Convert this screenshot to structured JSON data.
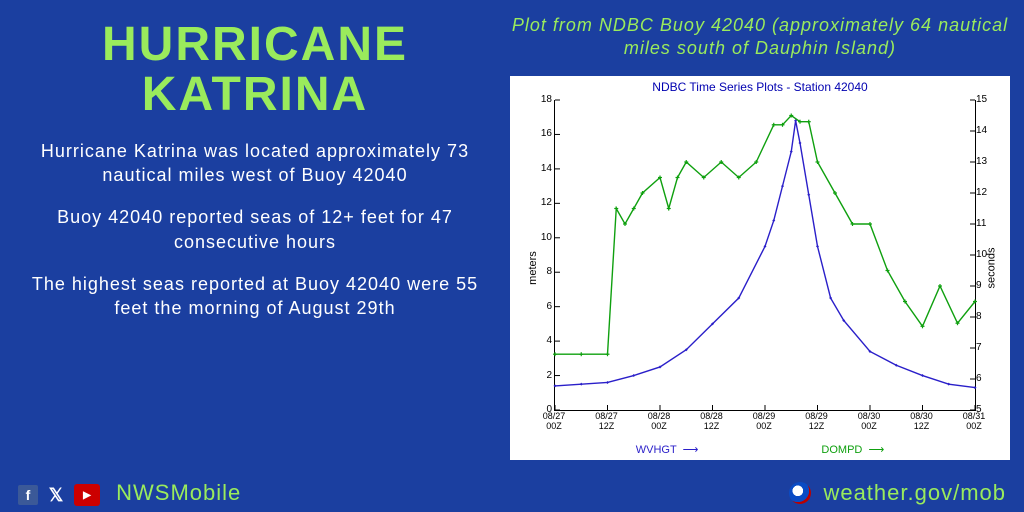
{
  "background_color": "#1b3fa0",
  "accent_color": "#9aeb5c",
  "text_color": "#ffffff",
  "title_line1": "HURRICANE",
  "title_line2": "KATRINA",
  "paragraphs": [
    "Hurricane Katrina was located approximately 73 nautical miles west of Buoy 42040",
    "Buoy 42040 reported seas of 12+ feet for 47 consecutive hours",
    "The highest seas reported at Buoy 42040 were 55 feet the morning of August 29th"
  ],
  "right_caption": "Plot from NDBC Buoy 42040 (approximately 64 nautical miles south of Dauphin Island)",
  "footer": {
    "handle": "NWSMobile",
    "url": "weather.gov/mob",
    "social": [
      "facebook-icon",
      "x-icon",
      "youtube-icon"
    ]
  },
  "chart": {
    "type": "line",
    "title": "NDBC Time Series Plots - Station 42040",
    "background_color": "#ffffff",
    "plot_border_color": "#000000",
    "text_color": "#000000",
    "title_color": "#0000b0",
    "y_left": {
      "label": "meters",
      "min": 0,
      "max": 18,
      "step": 2
    },
    "y_right": {
      "label": "seconds",
      "min": 5,
      "max": 15,
      "step": 1
    },
    "x": {
      "ticks": [
        "08/27\n00Z",
        "08/27\n12Z",
        "08/28\n00Z",
        "08/28\n12Z",
        "08/29\n00Z",
        "08/29\n12Z",
        "08/30\n00Z",
        "08/30\n12Z",
        "08/31\n00Z"
      ]
    },
    "series": [
      {
        "name": "WVHGT",
        "axis": "left",
        "color": "#2a1fc9",
        "line_width": 1.4,
        "marker": "diamond",
        "marker_size": 3,
        "x": [
          0,
          6,
          12,
          18,
          24,
          30,
          36,
          42,
          48,
          50,
          52,
          54,
          55,
          56,
          58,
          60,
          63,
          66,
          72,
          78,
          84,
          90,
          96
        ],
        "y": [
          1.4,
          1.5,
          1.6,
          2.0,
          2.5,
          3.5,
          5.0,
          6.5,
          9.5,
          11.0,
          13.0,
          15.0,
          16.8,
          15.5,
          12.5,
          9.5,
          6.5,
          5.2,
          3.4,
          2.6,
          2.0,
          1.5,
          1.3
        ]
      },
      {
        "name": "DOMPD",
        "axis": "right",
        "color": "#0fa00f",
        "line_width": 1.4,
        "marker": "plus",
        "marker_size": 4,
        "x": [
          0,
          6,
          12,
          14,
          16,
          18,
          20,
          24,
          26,
          28,
          30,
          34,
          38,
          42,
          46,
          50,
          52,
          54,
          56,
          58,
          60,
          64,
          68,
          72,
          76,
          80,
          84,
          88,
          92,
          96
        ],
        "y": [
          6.8,
          6.8,
          6.8,
          11.5,
          11.0,
          11.5,
          12.0,
          12.5,
          11.5,
          12.5,
          13.0,
          12.5,
          13.0,
          12.5,
          13.0,
          14.2,
          14.2,
          14.5,
          14.3,
          14.3,
          13.0,
          12.0,
          11.0,
          11.0,
          9.5,
          8.5,
          7.7,
          9.0,
          7.8,
          8.5
        ]
      }
    ],
    "legend": {
      "left": "WVHGT",
      "right": "DOMPD"
    }
  }
}
